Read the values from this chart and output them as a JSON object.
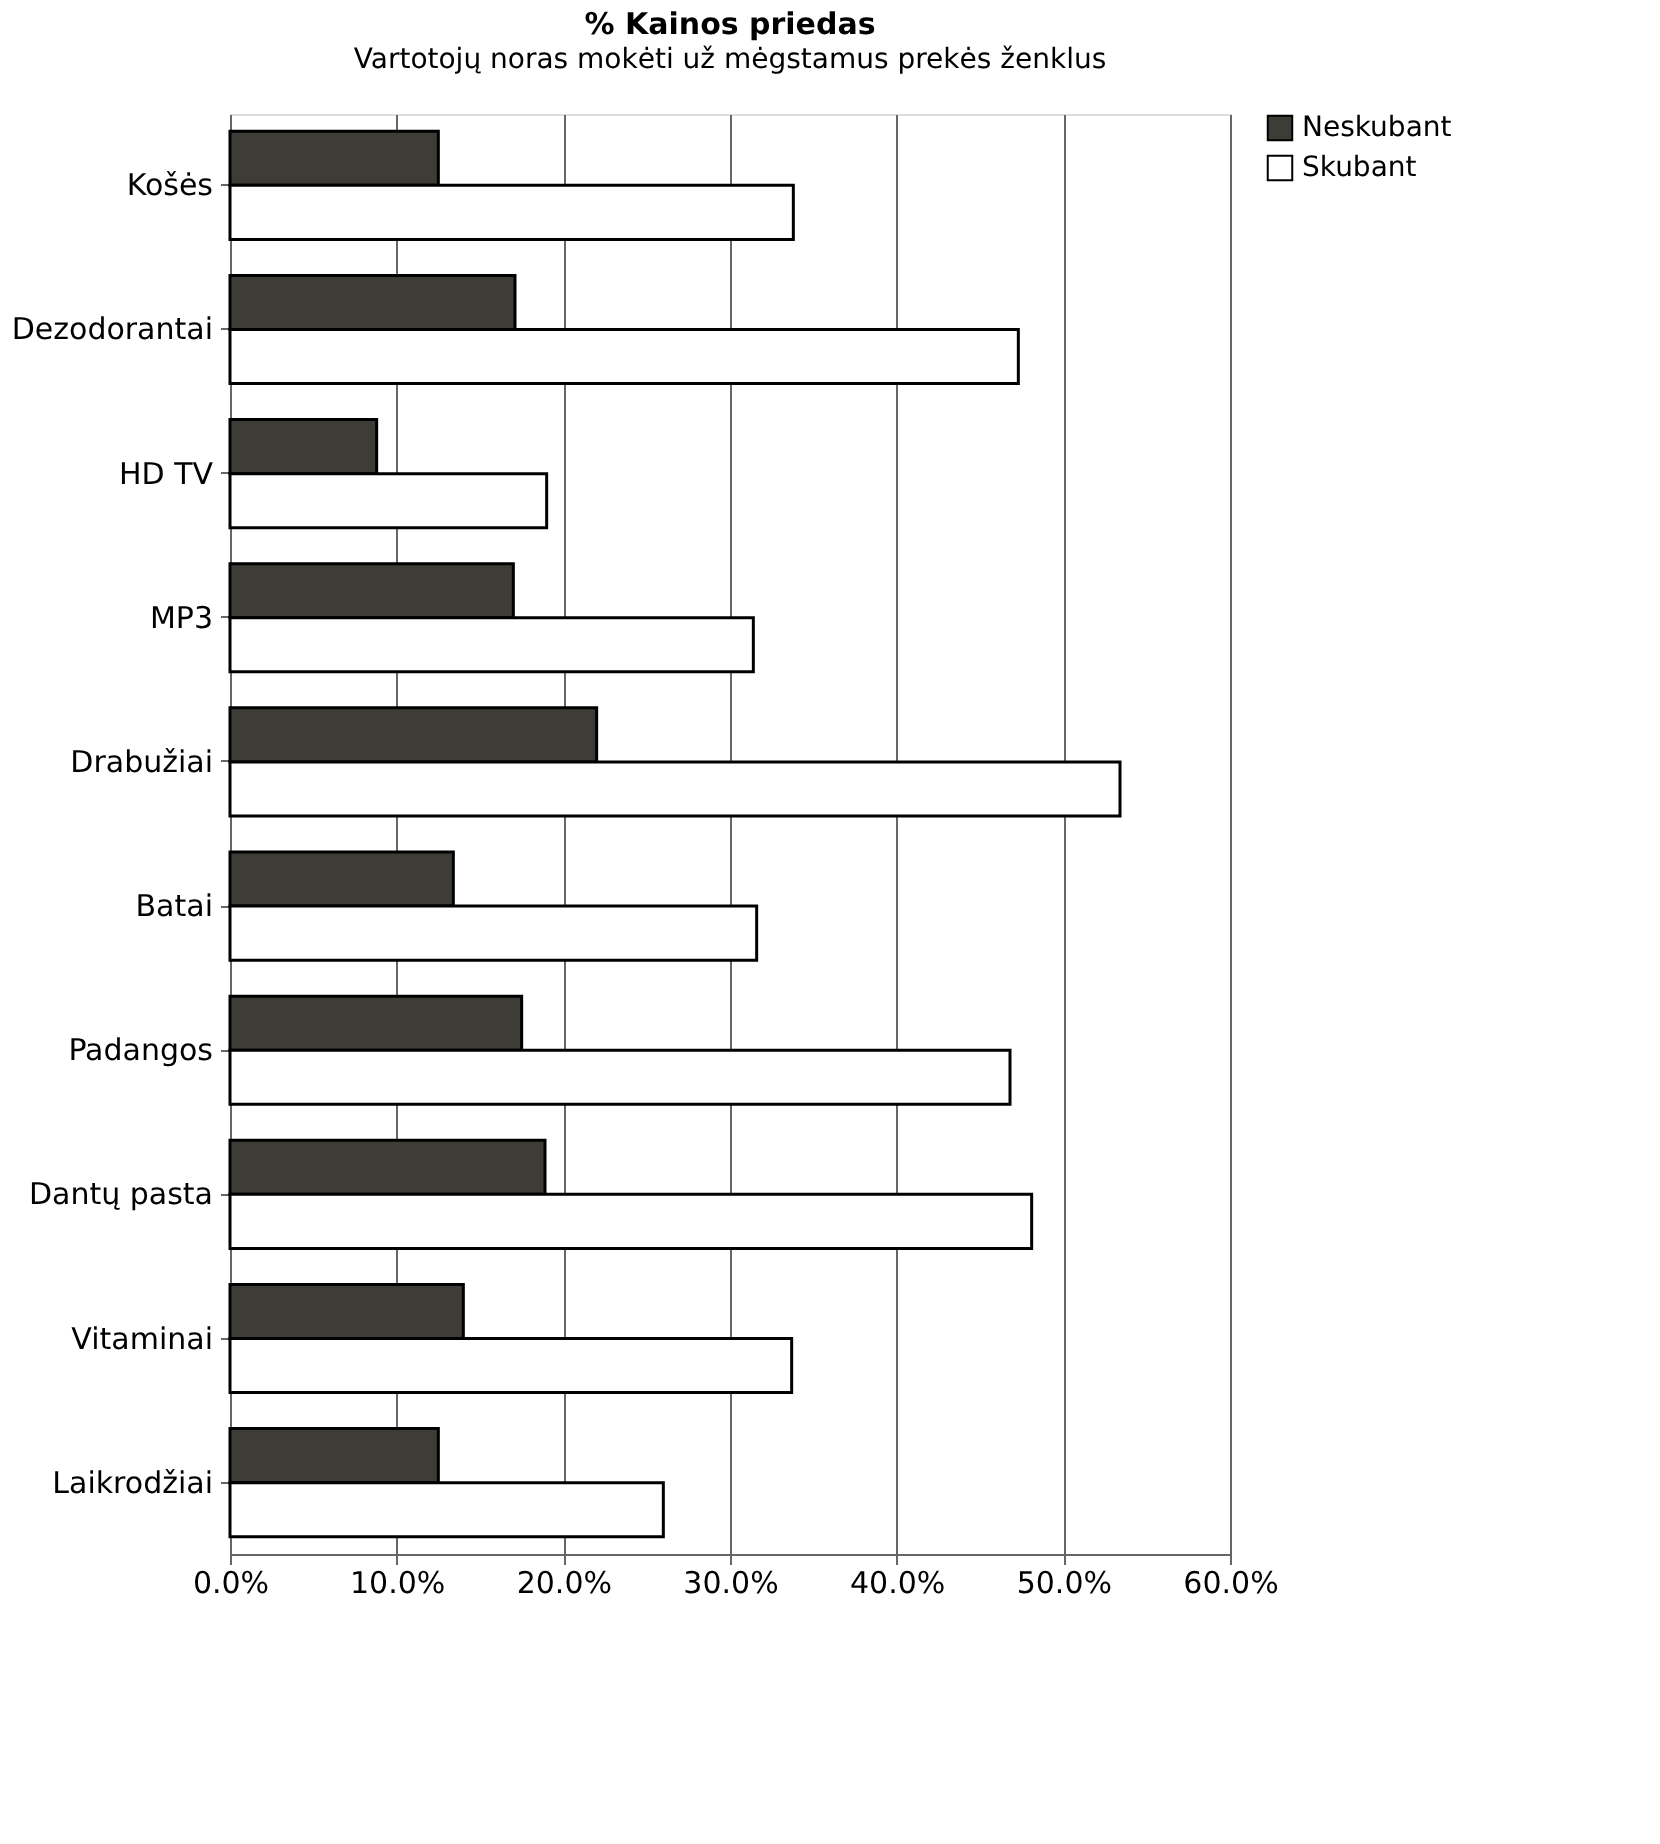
{
  "chart_data": {
    "type": "bar",
    "orientation": "horizontal",
    "title": "% Kainos priedas",
    "subtitle": "Vartotojų noras mokėti už mėgstamus prekės ženklus",
    "categories": [
      "Košės",
      "Dezodorantai",
      "HD TV",
      "MP3",
      "Drabužiai",
      "Batai",
      "Padangos",
      "Dantų pasta",
      "Vitaminai",
      "Laikrodžiai"
    ],
    "series": [
      {
        "name": "Neskubant",
        "color": "#3d3c36",
        "values": [
          12.5,
          17.1,
          8.8,
          17.0,
          22.0,
          13.4,
          17.5,
          18.9,
          14.0,
          12.5
        ]
      },
      {
        "name": "Skubant",
        "color": "#ffffff",
        "values": [
          33.8,
          47.3,
          19.0,
          31.4,
          53.4,
          31.6,
          46.8,
          48.1,
          33.7,
          26.0
        ]
      }
    ],
    "xlim": [
      0,
      60
    ],
    "xticks": [
      {
        "value": 0,
        "label": "0.0%"
      },
      {
        "value": 10,
        "label": "10.0%"
      },
      {
        "value": 20,
        "label": "20.0%"
      },
      {
        "value": 30,
        "label": "30.0%"
      },
      {
        "value": 40,
        "label": "40.0%"
      },
      {
        "value": 50,
        "label": "50.0%"
      },
      {
        "value": 60,
        "label": "60.0%"
      }
    ],
    "grid": "x",
    "legend": "right"
  }
}
